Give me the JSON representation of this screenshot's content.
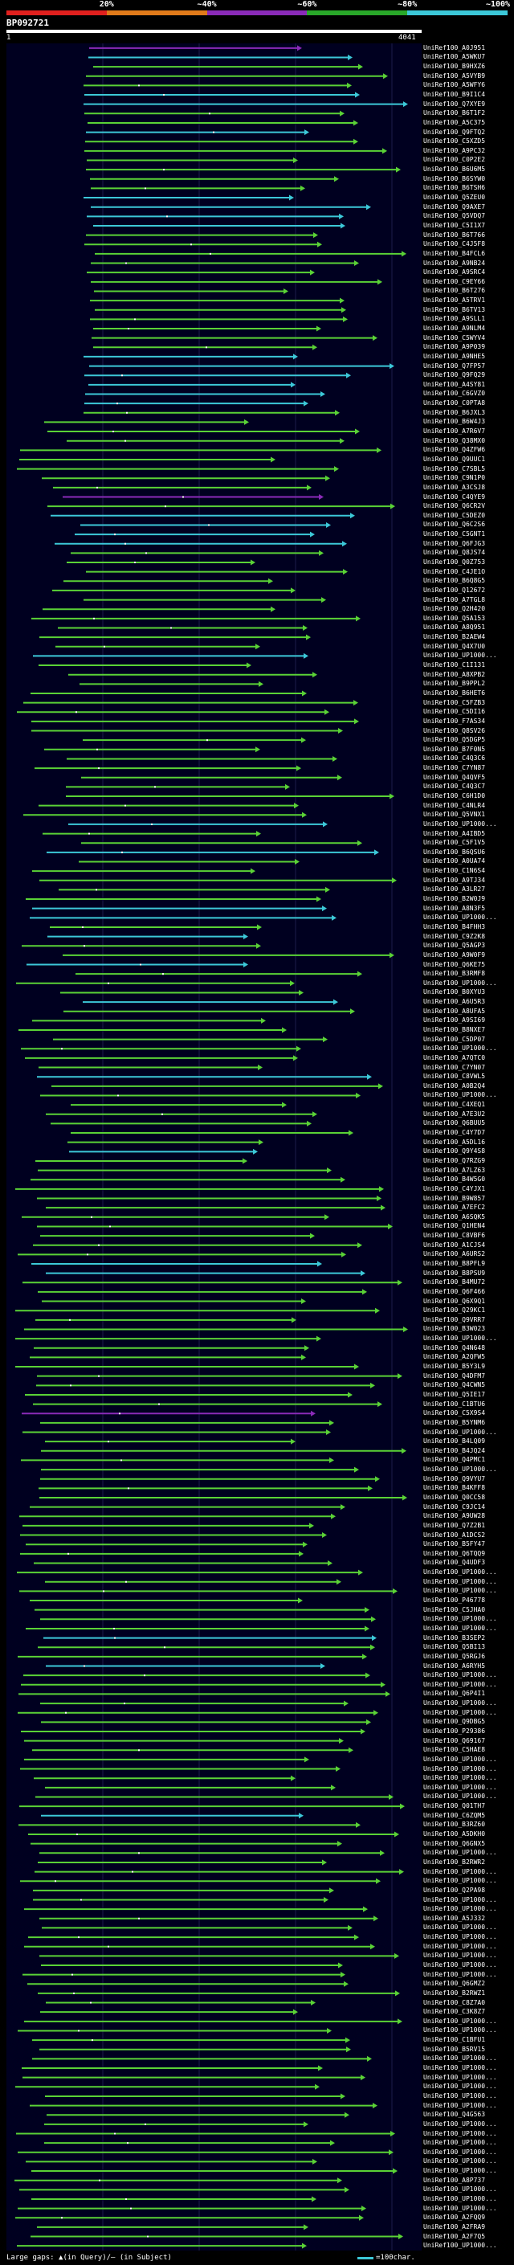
{
  "header": {
    "scale_labels": [
      "20%",
      "~40%",
      "~60%",
      "~80%",
      "~100%"
    ],
    "scale_colors": [
      "#e0201e",
      "#e07a1a",
      "#8a2ab8",
      "#29a829",
      "#3cc8d8"
    ],
    "query_name": "BP092721",
    "query_start": "1",
    "query_end": "4041"
  },
  "colors": {
    "low": "#8a2ab8",
    "mid": "#3cc8d8",
    "high": "#5ad236",
    "arrow": "#5ad236"
  },
  "hits": [
    {
      "label": "UniRef100_A0J951",
      "color": "#8a2ab8"
    },
    {
      "label": "UniRef100_A5WKU7",
      "color": "#3cc8d8"
    },
    {
      "label": "UniRef100_B9HXZ6",
      "color": "#5ad236"
    },
    {
      "label": "UniRef100_A5VYB9",
      "color": "#5ad236"
    },
    {
      "label": "UniRef100_A5WFY6",
      "color": "#5ad236"
    },
    {
      "label": "UniRef100_B9I1C4",
      "color": "#3cc8d8"
    },
    {
      "label": "UniRef100_Q7XYE9",
      "color": "#3cc8d8"
    },
    {
      "label": "UniRef100_B6T1F2",
      "color": "#5ad236"
    },
    {
      "label": "UniRef100_A5C375",
      "color": "#5ad236"
    },
    {
      "label": "UniRef100_Q9FTQ2",
      "color": "#3cc8d8"
    },
    {
      "label": "UniRef100_C5XZD5",
      "color": "#5ad236"
    },
    {
      "label": "UniRef100_A9PC32",
      "color": "#5ad236"
    },
    {
      "label": "UniRef100_C0P2E2",
      "color": "#5ad236"
    },
    {
      "label": "UniRef100_B6U6M5",
      "color": "#5ad236"
    },
    {
      "label": "UniRef100_B6SYW0",
      "color": "#5ad236"
    },
    {
      "label": "UniRef100_B6TSH6",
      "color": "#5ad236"
    },
    {
      "label": "UniRef100_Q5ZEU0",
      "color": "#3cc8d8"
    },
    {
      "label": "UniRef100_Q9AXE7",
      "color": "#3cc8d8"
    },
    {
      "label": "UniRef100_Q5VDQ7",
      "color": "#3cc8d8"
    },
    {
      "label": "UniRef100_C5I1X7",
      "color": "#3cc8d8"
    },
    {
      "label": "UniRef100_B6T766",
      "color": "#5ad236"
    },
    {
      "label": "UniRef100_C4J5F8",
      "color": "#5ad236"
    },
    {
      "label": "UniRef100_B4FCL6",
      "color": "#5ad236"
    },
    {
      "label": "UniRef100_A9NB24",
      "color": "#5ad236"
    },
    {
      "label": "UniRef100_A9SRC4",
      "color": "#5ad236"
    },
    {
      "label": "UniRef100_C9EY66",
      "color": "#5ad236"
    },
    {
      "label": "UniRef100_B6T276",
      "color": "#5ad236"
    },
    {
      "label": "UniRef100_A5TRV1",
      "color": "#5ad236"
    },
    {
      "label": "UniRef100_B6TV13",
      "color": "#5ad236"
    },
    {
      "label": "UniRef100_A9SLL1",
      "color": "#5ad236"
    },
    {
      "label": "UniRef100_A9NLM4",
      "color": "#5ad236"
    },
    {
      "label": "UniRef100_C5WYV4",
      "color": "#5ad236"
    },
    {
      "label": "UniRef100_A9P039",
      "color": "#5ad236"
    },
    {
      "label": "UniRef100_A9NHE5",
      "color": "#3cc8d8"
    },
    {
      "label": "UniRef100_Q7FP57",
      "color": "#3cc8d8"
    },
    {
      "label": "UniRef100_Q9FQ29",
      "color": "#3cc8d8"
    },
    {
      "label": "UniRef100_A4SY81",
      "color": "#3cc8d8"
    },
    {
      "label": "UniRef100_C6GVZ0",
      "color": "#3cc8d8"
    },
    {
      "label": "UniRef100_C0PTA8",
      "color": "#3cc8d8"
    },
    {
      "label": "UniRef100_B6JXL3",
      "color": "#5ad236"
    },
    {
      "label": "UniRef100_B6W4J3",
      "color": "#5ad236"
    },
    {
      "label": "UniRef100_A7R6V7",
      "color": "#5ad236"
    },
    {
      "label": "UniRef100_Q38MX0",
      "color": "#5ad236"
    },
    {
      "label": "UniRef100_Q4ZFW6",
      "color": "#5ad236"
    },
    {
      "label": "UniRef100_Q9UUC1",
      "color": "#5ad236"
    },
    {
      "label": "UniRef100_C7SBL5",
      "color": "#5ad236"
    },
    {
      "label": "UniRef100_C9N1P0",
      "color": "#5ad236"
    },
    {
      "label": "UniRef100_A3CSJ8",
      "color": "#5ad236"
    },
    {
      "label": "UniRef100_C4QYE9",
      "color": "#8a2ab8"
    },
    {
      "label": "UniRef100_Q6CR2V",
      "color": "#5ad236"
    },
    {
      "label": "UniRef100_C5DEZ0",
      "color": "#3cc8d8"
    },
    {
      "label": "UniRef100_Q6C2S6",
      "color": "#3cc8d8"
    },
    {
      "label": "UniRef100_C5GNT1",
      "color": "#3cc8d8"
    },
    {
      "label": "UniRef100_Q6FJG3",
      "color": "#3cc8d8"
    },
    {
      "label": "UniRef100_Q8JS74",
      "color": "#5ad236"
    },
    {
      "label": "UniRef100_Q0Z753",
      "color": "#5ad236"
    },
    {
      "label": "UniRef100_C4JE1O",
      "color": "#5ad236"
    },
    {
      "label": "UniRef100_B6Q8G5",
      "color": "#5ad236"
    },
    {
      "label": "UniRef100_Q12672",
      "color": "#5ad236"
    },
    {
      "label": "UniRef100_A7TGL8",
      "color": "#5ad236"
    },
    {
      "label": "UniRef100_Q2H420",
      "color": "#5ad236"
    },
    {
      "label": "UniRef100_Q5A153",
      "color": "#5ad236"
    },
    {
      "label": "UniRef100_A8Q951",
      "color": "#5ad236"
    },
    {
      "label": "UniRef100_B2AEW4",
      "color": "#5ad236"
    },
    {
      "label": "UniRef100_Q4X7U0",
      "color": "#5ad236"
    },
    {
      "label": "UniRef100_UP1000...",
      "color": "#3cc8d8"
    },
    {
      "label": "UniRef100_C1I131",
      "color": "#5ad236"
    },
    {
      "label": "UniRef100_A8XPB2",
      "color": "#5ad236"
    },
    {
      "label": "UniRef100_B9PPL2",
      "color": "#5ad236"
    },
    {
      "label": "UniRef100_B6HET6",
      "color": "#5ad236"
    },
    {
      "label": "UniRef100_C5FZB3",
      "color": "#5ad236"
    },
    {
      "label": "UniRef100_C5DI16",
      "color": "#5ad236"
    },
    {
      "label": "UniRef100_F7AS34",
      "color": "#5ad236"
    },
    {
      "label": "UniRef100_Q8SV26",
      "color": "#5ad236"
    },
    {
      "label": "UniRef100_Q5DGP5",
      "color": "#5ad236"
    },
    {
      "label": "UniRef100_B7F0N5",
      "color": "#5ad236"
    },
    {
      "label": "UniRef100_C4Q3C6",
      "color": "#5ad236"
    },
    {
      "label": "UniRef100_C7YN87",
      "color": "#5ad236"
    },
    {
      "label": "UniRef100_Q4QVF5",
      "color": "#5ad236"
    },
    {
      "label": "UniRef100_C4Q3C7",
      "color": "#5ad236"
    },
    {
      "label": "UniRef100_C6H1D0",
      "color": "#5ad236"
    },
    {
      "label": "UniRef100_C4NLR4",
      "color": "#5ad236"
    },
    {
      "label": "UniRef100_Q5VNX1",
      "color": "#5ad236"
    },
    {
      "label": "UniRef100_UP1000...",
      "color": "#3cc8d8"
    },
    {
      "label": "UniRef100_A4IBD5",
      "color": "#5ad236"
    },
    {
      "label": "UniRef100_C5F1V5",
      "color": "#5ad236"
    },
    {
      "label": "UniRef100_B6QSU6",
      "color": "#3cc8d8"
    },
    {
      "label": "UniRef100_A0UA74",
      "color": "#5ad236"
    },
    {
      "label": "UniRef100_C1N6S4",
      "color": "#5ad236"
    },
    {
      "label": "UniRef100_A9TJ34",
      "color": "#5ad236"
    },
    {
      "label": "UniRef100_A3LR27",
      "color": "#5ad236"
    },
    {
      "label": "UniRef100_B2W0J9",
      "color": "#5ad236"
    },
    {
      "label": "UniRef100_A8N3F5",
      "color": "#3cc8d8"
    },
    {
      "label": "UniRef100_UP1000...",
      "color": "#3cc8d8"
    },
    {
      "label": "UniRef100_B4FHH3",
      "color": "#5ad236"
    },
    {
      "label": "UniRef100_C9Z2K8",
      "color": "#3cc8d8"
    },
    {
      "label": "UniRef100_Q5AGP3",
      "color": "#5ad236"
    },
    {
      "label": "UniRef100_A9W0F9",
      "color": "#5ad236"
    },
    {
      "label": "UniRef100_Q6KE75",
      "color": "#3cc8d8"
    },
    {
      "label": "UniRef100_B3RMF8",
      "color": "#5ad236"
    },
    {
      "label": "UniRef100_UP1000...",
      "color": "#5ad236"
    },
    {
      "label": "UniRef100_B0XYU3",
      "color": "#5ad236"
    },
    {
      "label": "UniRef100_A6U5R3",
      "color": "#3cc8d8"
    },
    {
      "label": "UniRef100_A8UFA5",
      "color": "#5ad236"
    },
    {
      "label": "UniRef100_A9SI69",
      "color": "#5ad236"
    },
    {
      "label": "UniRef100_B8NXE7",
      "color": "#5ad236"
    },
    {
      "label": "UniRef100_C5DP07",
      "color": "#5ad236"
    },
    {
      "label": "UniRef100_UP1000...",
      "color": "#5ad236"
    },
    {
      "label": "UniRef100_A7QTC0",
      "color": "#5ad236"
    },
    {
      "label": "UniRef100_C7YN07",
      "color": "#5ad236"
    },
    {
      "label": "UniRef100_C8VWL5",
      "color": "#3cc8d8"
    },
    {
      "label": "UniRef100_A0B2Q4",
      "color": "#5ad236"
    },
    {
      "label": "UniRef100_UP1000...",
      "color": "#5ad236"
    },
    {
      "label": "UniRef100_C4XEQ1",
      "color": "#5ad236"
    },
    {
      "label": "UniRef100_A7E3U2",
      "color": "#5ad236"
    },
    {
      "label": "UniRef100_Q6BUU5",
      "color": "#5ad236"
    },
    {
      "label": "UniRef100_C4Y7D7",
      "color": "#5ad236"
    },
    {
      "label": "UniRef100_A5DL16",
      "color": "#5ad236"
    },
    {
      "label": "UniRef100_Q9Y4S8",
      "color": "#3cc8d8"
    },
    {
      "label": "UniRef100_Q7RZG9",
      "color": "#5ad236"
    },
    {
      "label": "UniRef100_A7LZ63",
      "color": "#5ad236"
    },
    {
      "label": "UniRef100_B4W5G0",
      "color": "#5ad236"
    },
    {
      "label": "UniRef100_C4YJX1",
      "color": "#5ad236"
    },
    {
      "label": "UniRef100_B9W857",
      "color": "#5ad236"
    },
    {
      "label": "UniRef100_A7EFC2",
      "color": "#5ad236"
    },
    {
      "label": "UniRef100_A6SQK5",
      "color": "#5ad236"
    },
    {
      "label": "UniRef100_Q1HEN4",
      "color": "#5ad236"
    },
    {
      "label": "UniRef100_C8VBF6",
      "color": "#5ad236"
    },
    {
      "label": "UniRef100_A1CJS4",
      "color": "#5ad236"
    },
    {
      "label": "UniRef100_A6URS2",
      "color": "#5ad236"
    },
    {
      "label": "UniRef100_B8PFL9",
      "color": "#3cc8d8"
    },
    {
      "label": "UniRef100_B8PSU9",
      "color": "#3cc8d8"
    },
    {
      "label": "UniRef100_B4MU72",
      "color": "#5ad236"
    },
    {
      "label": "UniRef100_Q6F466",
      "color": "#5ad236"
    },
    {
      "label": "UniRef100_Q6X9Q1",
      "color": "#5ad236"
    },
    {
      "label": "UniRef100_Q29KC1",
      "color": "#5ad236"
    },
    {
      "label": "UniRef100_Q9VRR7",
      "color": "#5ad236"
    },
    {
      "label": "UniRef100_B3W023",
      "color": "#5ad236"
    },
    {
      "label": "UniRef100_UP1000...",
      "color": "#5ad236"
    },
    {
      "label": "UniRef100_Q4N648",
      "color": "#5ad236"
    },
    {
      "label": "UniRef100_A2QFW5",
      "color": "#5ad236"
    },
    {
      "label": "UniRef100_B5Y3L9",
      "color": "#5ad236"
    },
    {
      "label": "UniRef100_Q4DFM7",
      "color": "#5ad236"
    },
    {
      "label": "UniRef100_Q4CWN5",
      "color": "#5ad236"
    },
    {
      "label": "UniRef100_Q5IE17",
      "color": "#5ad236"
    },
    {
      "label": "UniRef100_C1BTU6",
      "color": "#5ad236"
    },
    {
      "label": "UniRef100_C5X9S4",
      "color": "#8a2ab8"
    },
    {
      "label": "UniRef100_B5YNM6",
      "color": "#5ad236"
    },
    {
      "label": "UniRef100_UP1000...",
      "color": "#5ad236"
    },
    {
      "label": "UniRef100_B4LQ09",
      "color": "#5ad236"
    },
    {
      "label": "UniRef100_B4JQ24",
      "color": "#5ad236"
    },
    {
      "label": "UniRef100_Q4PMC1",
      "color": "#5ad236"
    },
    {
      "label": "UniRef100_UP1000...",
      "color": "#5ad236"
    },
    {
      "label": "UniRef100_Q9VYU7",
      "color": "#5ad236"
    },
    {
      "label": "UniRef100_B4KFF8",
      "color": "#5ad236"
    },
    {
      "label": "UniRef100_Q0CC58",
      "color": "#5ad236"
    },
    {
      "label": "UniRef100_C9JC14",
      "color": "#5ad236"
    },
    {
      "label": "UniRef100_A9UW28",
      "color": "#5ad236"
    },
    {
      "label": "UniRef100_Q7Z2B1",
      "color": "#5ad236"
    },
    {
      "label": "UniRef100_A1DCS2",
      "color": "#5ad236"
    },
    {
      "label": "UniRef100_B5FY47",
      "color": "#5ad236"
    },
    {
      "label": "UniRef100_Q6TQQ9",
      "color": "#5ad236"
    },
    {
      "label": "UniRef100_Q4UDF3",
      "color": "#5ad236"
    },
    {
      "label": "UniRef100_UP1000...",
      "color": "#5ad236"
    },
    {
      "label": "UniRef100_UP1000...",
      "color": "#5ad236"
    },
    {
      "label": "UniRef100_UP1000...",
      "color": "#5ad236"
    },
    {
      "label": "UniRef100_P46778",
      "color": "#5ad236"
    },
    {
      "label": "UniRef100_C5JHA0",
      "color": "#5ad236"
    },
    {
      "label": "UniRef100_UP1000...",
      "color": "#5ad236"
    },
    {
      "label": "UniRef100_UP1000...",
      "color": "#5ad236"
    },
    {
      "label": "UniRef100_B3SEP2",
      "color": "#3cc8d8"
    },
    {
      "label": "UniRef100_Q5BI13",
      "color": "#5ad236"
    },
    {
      "label": "UniRef100_Q5RGJ6",
      "color": "#5ad236"
    },
    {
      "label": "UniRef100_A6RYH5",
      "color": "#3cc8d8"
    },
    {
      "label": "UniRef100_UP1000...",
      "color": "#5ad236"
    },
    {
      "label": "UniRef100_UP1000...",
      "color": "#5ad236"
    },
    {
      "label": "UniRef100_Q6P4I1",
      "color": "#5ad236"
    },
    {
      "label": "UniRef100_UP1000...",
      "color": "#5ad236"
    },
    {
      "label": "UniRef100_UP1000...",
      "color": "#5ad236"
    },
    {
      "label": "UniRef100_Q9DBG5",
      "color": "#5ad236"
    },
    {
      "label": "UniRef100_P29386",
      "color": "#5ad236"
    },
    {
      "label": "UniRef100_Q69167",
      "color": "#5ad236"
    },
    {
      "label": "UniRef100_C5HAE8",
      "color": "#5ad236"
    },
    {
      "label": "UniRef100_UP1000...",
      "color": "#5ad236"
    },
    {
      "label": "UniRef100_UP1000...",
      "color": "#5ad236"
    },
    {
      "label": "UniRef100_UP1000...",
      "color": "#5ad236"
    },
    {
      "label": "UniRef100_UP1000...",
      "color": "#5ad236"
    },
    {
      "label": "UniRef100_UP1000...",
      "color": "#5ad236"
    },
    {
      "label": "UniRef100_Q01TH7",
      "color": "#5ad236"
    },
    {
      "label": "UniRef100_C6ZQM5",
      "color": "#3cc8d8"
    },
    {
      "label": "UniRef100_B3RZ60",
      "color": "#5ad236"
    },
    {
      "label": "UniRef100_A5DKH0",
      "color": "#5ad236"
    },
    {
      "label": "UniRef100_Q6GNX5",
      "color": "#5ad236"
    },
    {
      "label": "UniRef100_UP1000...",
      "color": "#5ad236"
    },
    {
      "label": "UniRef100_B2RWR2",
      "color": "#5ad236"
    },
    {
      "label": "UniRef100_UP1000...",
      "color": "#5ad236"
    },
    {
      "label": "UniRef100_UP1000...",
      "color": "#5ad236"
    },
    {
      "label": "UniRef100_Q2PA98",
      "color": "#5ad236"
    },
    {
      "label": "UniRef100_UP1000...",
      "color": "#5ad236"
    },
    {
      "label": "UniRef100_UP1000...",
      "color": "#5ad236"
    },
    {
      "label": "UniRef100_A5J332",
      "color": "#5ad236"
    },
    {
      "label": "UniRef100_UP1000...",
      "color": "#5ad236"
    },
    {
      "label": "UniRef100_UP1000...",
      "color": "#5ad236"
    },
    {
      "label": "UniRef100_UP1000...",
      "color": "#5ad236"
    },
    {
      "label": "UniRef100_UP1000...",
      "color": "#5ad236"
    },
    {
      "label": "UniRef100_UP1000...",
      "color": "#5ad236"
    },
    {
      "label": "UniRef100_UP1000...",
      "color": "#5ad236"
    },
    {
      "label": "UniRef100_Q6GMZ2",
      "color": "#5ad236"
    },
    {
      "label": "UniRef100_B2RWZ1",
      "color": "#5ad236"
    },
    {
      "label": "UniRef100_C8Z7A0",
      "color": "#5ad236"
    },
    {
      "label": "UniRef100_C3K8Z7",
      "color": "#5ad236"
    },
    {
      "label": "UniRef100_UP1000...",
      "color": "#5ad236"
    },
    {
      "label": "UniRef100_UP1000...",
      "color": "#5ad236"
    },
    {
      "label": "UniRef100_C1BFU1",
      "color": "#5ad236"
    },
    {
      "label": "UniRef100_B5RV15",
      "color": "#5ad236"
    },
    {
      "label": "UniRef100_UP1000...",
      "color": "#5ad236"
    },
    {
      "label": "UniRef100_UP1000...",
      "color": "#5ad236"
    },
    {
      "label": "UniRef100_UP1000...",
      "color": "#5ad236"
    },
    {
      "label": "UniRef100_UP1000...",
      "color": "#5ad236"
    },
    {
      "label": "UniRef100_UP1000...",
      "color": "#5ad236"
    },
    {
      "label": "UniRef100_UP1000...",
      "color": "#5ad236"
    },
    {
      "label": "UniRef100_Q4G563",
      "color": "#5ad236"
    },
    {
      "label": "UniRef100_UP1000...",
      "color": "#5ad236"
    },
    {
      "label": "UniRef100_UP1000...",
      "color": "#5ad236"
    },
    {
      "label": "UniRef100_UP1000...",
      "color": "#5ad236"
    },
    {
      "label": "UniRef100_UP1000...",
      "color": "#5ad236"
    },
    {
      "label": "UniRef100_UP1000...",
      "color": "#5ad236"
    },
    {
      "label": "UniRef100_UP1000...",
      "color": "#5ad236"
    },
    {
      "label": "UniRef100_A8P737",
      "color": "#5ad236"
    },
    {
      "label": "UniRef100_UP1000...",
      "color": "#5ad236"
    },
    {
      "label": "UniRef100_UP1000...",
      "color": "#5ad236"
    },
    {
      "label": "UniRef100_UP1000...",
      "color": "#5ad236"
    },
    {
      "label": "UniRef100_A2FQQ9",
      "color": "#5ad236"
    },
    {
      "label": "UniRef100_A2FRA9",
      "color": "#5ad236"
    },
    {
      "label": "UniRef100_A2F7Q5",
      "color": "#5ad236"
    },
    {
      "label": "UniRef100_UP1000...",
      "color": "#5ad236"
    }
  ],
  "legend": {
    "text": "Large gaps: ▲(in Query)/– (in Subject)",
    "scale": "=100char."
  }
}
